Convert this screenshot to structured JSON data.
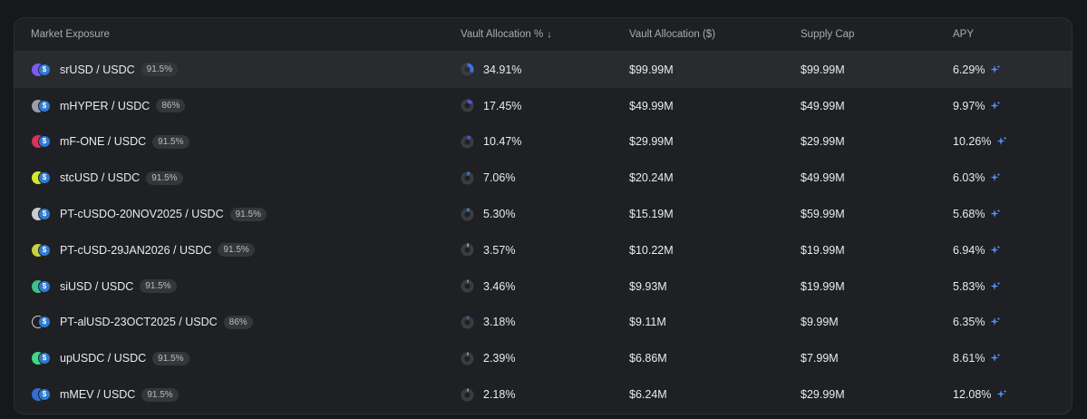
{
  "header": {
    "market_exposure": "Market Exposure",
    "vault_allocation_pct": "Vault Allocation %",
    "sort_indicator": "↓",
    "vault_allocation_usd": "Vault Allocation ($)",
    "supply_cap": "Supply Cap",
    "apy": "APY"
  },
  "colors": {
    "pie_fill": "#3d6fe0",
    "pie_track": "#3a3c41",
    "apy_sparkle": "#4f8df5",
    "active_row": "#2a2b2f"
  },
  "rows": [
    {
      "market": "srUSD / USDC",
      "lltv": "91.5%",
      "alloc_pct": "34.91%",
      "alloc_fraction": 0.3491,
      "alloc_usd": "$99.99M",
      "supply_cap": "$99.99M",
      "apy": "6.29%",
      "collateral_color": "#7b5cf0",
      "active": true,
      "pie_color": "#3d6fe0"
    },
    {
      "market": "mHYPER / USDC",
      "lltv": "86%",
      "alloc_pct": "17.45%",
      "alloc_fraction": 0.1745,
      "alloc_usd": "$49.99M",
      "supply_cap": "$49.99M",
      "apy": "9.97%",
      "collateral_color": "#9a9ea6",
      "active": false,
      "pie_color": "#5b4de0"
    },
    {
      "market": "mF-ONE / USDC",
      "lltv": "91.5%",
      "alloc_pct": "10.47%",
      "alloc_fraction": 0.1047,
      "alloc_usd": "$29.99M",
      "supply_cap": "$29.99M",
      "apy": "10.26%",
      "collateral_color": "#d8325a",
      "active": false,
      "pie_color": "#3d5fd8"
    },
    {
      "market": "stcUSD / USDC",
      "lltv": "91.5%",
      "alloc_pct": "7.06%",
      "alloc_fraction": 0.0706,
      "alloc_usd": "$20.24M",
      "supply_cap": "$49.99M",
      "apy": "6.03%",
      "collateral_color": "#d4e82f",
      "active": false,
      "pie_color": "#3a82e6"
    },
    {
      "market": "PT-cUSDO-20NOV2025 / USDC",
      "lltv": "91.5%",
      "alloc_pct": "5.30%",
      "alloc_fraction": 0.053,
      "alloc_usd": "$15.19M",
      "supply_cap": "$59.99M",
      "apy": "5.68%",
      "collateral_color": "#c9ccd2",
      "active": false,
      "pie_color": "#3aa0e6"
    },
    {
      "market": "PT-cUSD-29JAN2026 / USDC",
      "lltv": "91.5%",
      "alloc_pct": "3.57%",
      "alloc_fraction": 0.0357,
      "alloc_usd": "$10.22M",
      "supply_cap": "$19.99M",
      "apy": "6.94%",
      "collateral_color": "#c8d23a",
      "active": false,
      "pie_color": "#d0d3d8"
    },
    {
      "market": "siUSD / USDC",
      "lltv": "91.5%",
      "alloc_pct": "3.46%",
      "alloc_fraction": 0.0346,
      "alloc_usd": "$9.93M",
      "supply_cap": "$19.99M",
      "apy": "5.83%",
      "collateral_color": "#3fbf8a",
      "active": false,
      "pie_color": "#5fd0a0"
    },
    {
      "market": "PT-alUSD-23OCT2025 / USDC",
      "lltv": "86%",
      "alloc_pct": "3.18%",
      "alloc_fraction": 0.0318,
      "alloc_usd": "$9.11M",
      "supply_cap": "$9.99M",
      "apy": "6.35%",
      "collateral_color": "#1f2023",
      "active": false,
      "pie_color": "#6a7cf0"
    },
    {
      "market": "upUSDC / USDC",
      "lltv": "91.5%",
      "alloc_pct": "2.39%",
      "alloc_fraction": 0.0239,
      "alloc_usd": "$6.86M",
      "supply_cap": "$7.99M",
      "apy": "8.61%",
      "collateral_color": "#3ddc84",
      "active": false,
      "pie_color": "#c8ccd2"
    },
    {
      "market": "mMEV / USDC",
      "lltv": "91.5%",
      "alloc_pct": "2.18%",
      "alloc_fraction": 0.0218,
      "alloc_usd": "$6.24M",
      "supply_cap": "$29.99M",
      "apy": "12.08%",
      "collateral_color": "#2f6fd6",
      "active": false,
      "pie_color": "#c8ccd2"
    }
  ]
}
